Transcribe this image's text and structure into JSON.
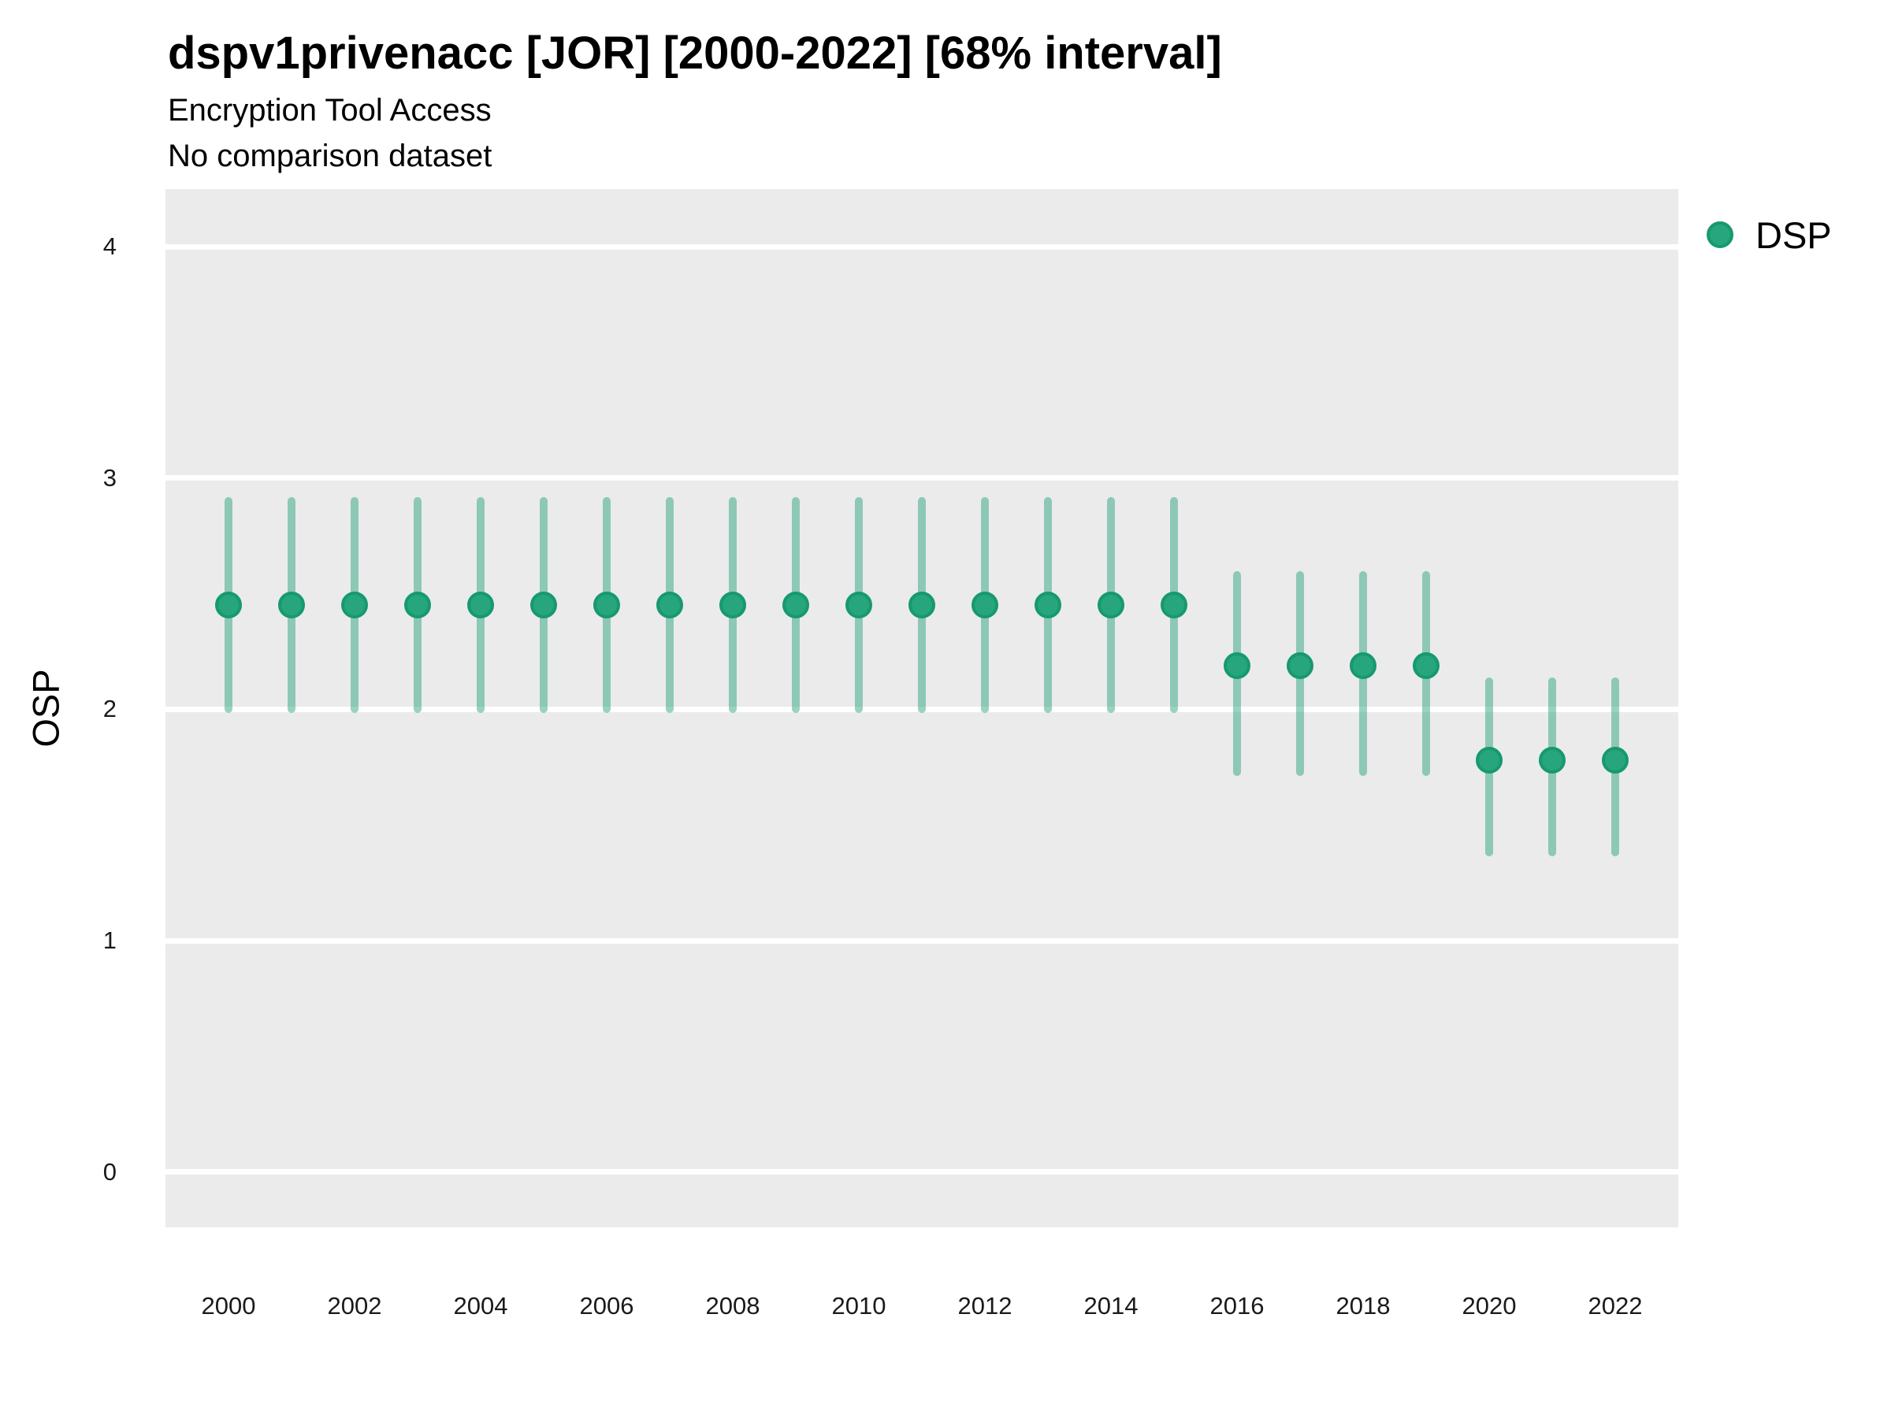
{
  "header": {
    "title": "dspv1privenacc [JOR] [2000-2022] [68% interval]",
    "subtitle": "Encryption Tool Access",
    "note": "No comparison dataset"
  },
  "legend": {
    "position": "right",
    "items": [
      {
        "label": "DSP",
        "symbol": "circle",
        "color": "#27A57C"
      }
    ]
  },
  "chart_data": {
    "type": "pointrange",
    "title": "dspv1privenacc [JOR] [2000-2022] [68% interval]",
    "subtitle": "Encryption Tool Access",
    "note": "No comparison dataset",
    "interval_level": "68%",
    "xlabel": "",
    "ylabel": "OSP",
    "x_ticks": [
      2000,
      2002,
      2004,
      2006,
      2008,
      2010,
      2012,
      2014,
      2016,
      2018,
      2020,
      2022
    ],
    "y_ticks": [
      0,
      1,
      2,
      3,
      4
    ],
    "xlim": [
      1999,
      2023
    ],
    "ylim": [
      -0.24,
      4.25
    ],
    "grid": "major-horizontal only, white lines on gray panel",
    "legend_position": "right-top",
    "panel_bg": "#EBEBEB",
    "grid_color": "#FFFFFF",
    "series": [
      {
        "name": "DSP",
        "point_color": "#27A57C",
        "point_border_color": "#179970",
        "range_color": "rgba(27,158,119,0.45)",
        "points": [
          {
            "x": 2000,
            "est": 2.45,
            "lo": 2.0,
            "hi": 2.9
          },
          {
            "x": 2001,
            "est": 2.45,
            "lo": 2.0,
            "hi": 2.9
          },
          {
            "x": 2002,
            "est": 2.45,
            "lo": 2.0,
            "hi": 2.9
          },
          {
            "x": 2003,
            "est": 2.45,
            "lo": 2.0,
            "hi": 2.9
          },
          {
            "x": 2004,
            "est": 2.45,
            "lo": 2.0,
            "hi": 2.9
          },
          {
            "x": 2005,
            "est": 2.45,
            "lo": 2.0,
            "hi": 2.9
          },
          {
            "x": 2006,
            "est": 2.45,
            "lo": 2.0,
            "hi": 2.9
          },
          {
            "x": 2007,
            "est": 2.45,
            "lo": 2.0,
            "hi": 2.9
          },
          {
            "x": 2008,
            "est": 2.45,
            "lo": 2.0,
            "hi": 2.9
          },
          {
            "x": 2009,
            "est": 2.45,
            "lo": 2.0,
            "hi": 2.9
          },
          {
            "x": 2010,
            "est": 2.45,
            "lo": 2.0,
            "hi": 2.9
          },
          {
            "x": 2011,
            "est": 2.45,
            "lo": 2.0,
            "hi": 2.9
          },
          {
            "x": 2012,
            "est": 2.45,
            "lo": 2.0,
            "hi": 2.9
          },
          {
            "x": 2013,
            "est": 2.45,
            "lo": 2.0,
            "hi": 2.9
          },
          {
            "x": 2014,
            "est": 2.45,
            "lo": 2.0,
            "hi": 2.9
          },
          {
            "x": 2015,
            "est": 2.45,
            "lo": 2.0,
            "hi": 2.9
          },
          {
            "x": 2016,
            "est": 2.19,
            "lo": 1.73,
            "hi": 2.58
          },
          {
            "x": 2017,
            "est": 2.19,
            "lo": 1.73,
            "hi": 2.58
          },
          {
            "x": 2018,
            "est": 2.19,
            "lo": 1.73,
            "hi": 2.58
          },
          {
            "x": 2019,
            "est": 2.19,
            "lo": 1.73,
            "hi": 2.58
          },
          {
            "x": 2020,
            "est": 1.78,
            "lo": 1.38,
            "hi": 2.12
          },
          {
            "x": 2021,
            "est": 1.78,
            "lo": 1.38,
            "hi": 2.12
          },
          {
            "x": 2022,
            "est": 1.78,
            "lo": 1.38,
            "hi": 2.12
          }
        ]
      }
    ]
  }
}
